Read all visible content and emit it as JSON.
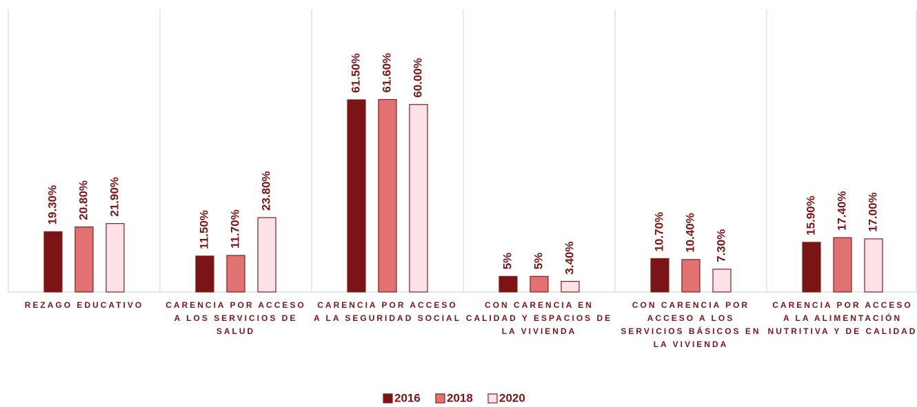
{
  "chart_data": {
    "type": "bar",
    "categories": [
      "REZAGO EDUCATIVO",
      "CARENCIA POR ACCESO A LOS SERVICIOS DE SALUD",
      "CARENCIA POR ACCESO A LA SEGURIDAD SOCIAL",
      "CON CARENCIA EN CALIDAD Y ESPACIOS DE LA VIVIENDA",
      "CON CARENCIA POR ACCESO A LOS SERVICIOS BÁSICOS EN LA VIVIENDA",
      "CARENCIA POR ACCESO A LA ALIMENTACIÓN NUTRITIVA Y DE CALIDAD"
    ],
    "series": [
      {
        "name": "2016",
        "color": "#7b1416",
        "values": [
          19.3,
          11.5,
          61.5,
          5,
          10.7,
          15.9
        ],
        "value_labels": [
          "19.30%",
          "11.50%",
          "61.50%",
          "5%",
          "10.70%",
          "15.90%"
        ]
      },
      {
        "name": "2018",
        "color": "#e07272",
        "values": [
          20.8,
          11.7,
          61.6,
          5,
          10.4,
          17.4
        ],
        "value_labels": [
          "20.80%",
          "11.70%",
          "61.60%",
          "5%",
          "10.40%",
          "17.40%"
        ]
      },
      {
        "name": "2020",
        "color": "#fde3e8",
        "values": [
          21.9,
          23.8,
          60.0,
          3.4,
          7.3,
          17.0
        ],
        "value_labels": [
          "21.90%",
          "23.80%",
          "60.00%",
          "3.40%",
          "7.30%",
          "17.00%"
        ]
      }
    ],
    "ylim": [
      0,
      93
    ],
    "legend": "bottom"
  }
}
